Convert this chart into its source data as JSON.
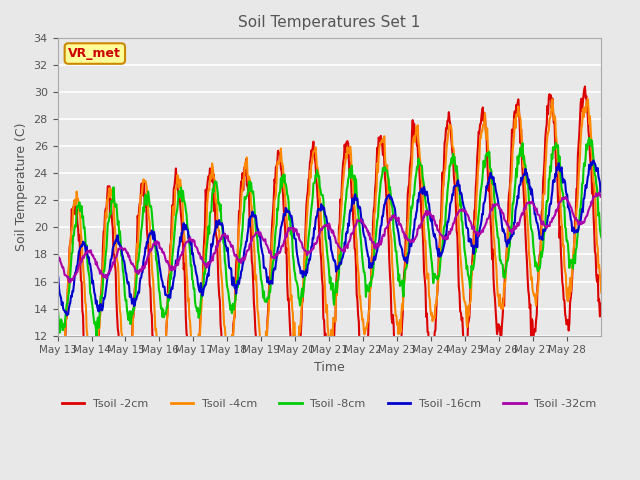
{
  "title": "Soil Temperatures Set 1",
  "xlabel": "Time",
  "ylabel": "Soil Temperature (C)",
  "ylim": [
    12,
    34
  ],
  "yticks": [
    12,
    14,
    16,
    18,
    20,
    22,
    24,
    26,
    28,
    30,
    32,
    34
  ],
  "annotation": "VR_met",
  "annotation_color": "#cc0000",
  "annotation_bg": "#ffff99",
  "annotation_border": "#cc8800",
  "background_color": "#e8e8e8",
  "grid_color": "white",
  "title_color": "#555555",
  "label_color": "#555555",
  "tick_color": "#555555",
  "series": [
    {
      "label": "Tsoil -2cm",
      "color": "#dd0000",
      "lw": 1.5
    },
    {
      "label": "Tsoil -4cm",
      "color": "#ff8800",
      "lw": 1.5
    },
    {
      "label": "Tsoil -8cm",
      "color": "#00cc00",
      "lw": 1.5
    },
    {
      "label": "Tsoil -16cm",
      "color": "#0000cc",
      "lw": 1.5
    },
    {
      "label": "Tsoil -32cm",
      "color": "#aa00aa",
      "lw": 1.5
    }
  ],
  "xtick_labels": [
    "May 13",
    "May 14",
    "May 15",
    "May 16",
    "May 17",
    "May 18",
    "May 19",
    "May 20",
    "May 21",
    "May 22",
    "May 23",
    "May 24",
    "May 25",
    "May 26",
    "May 27",
    "May 28"
  ],
  "n_days": 16,
  "legend_ncol": 5
}
